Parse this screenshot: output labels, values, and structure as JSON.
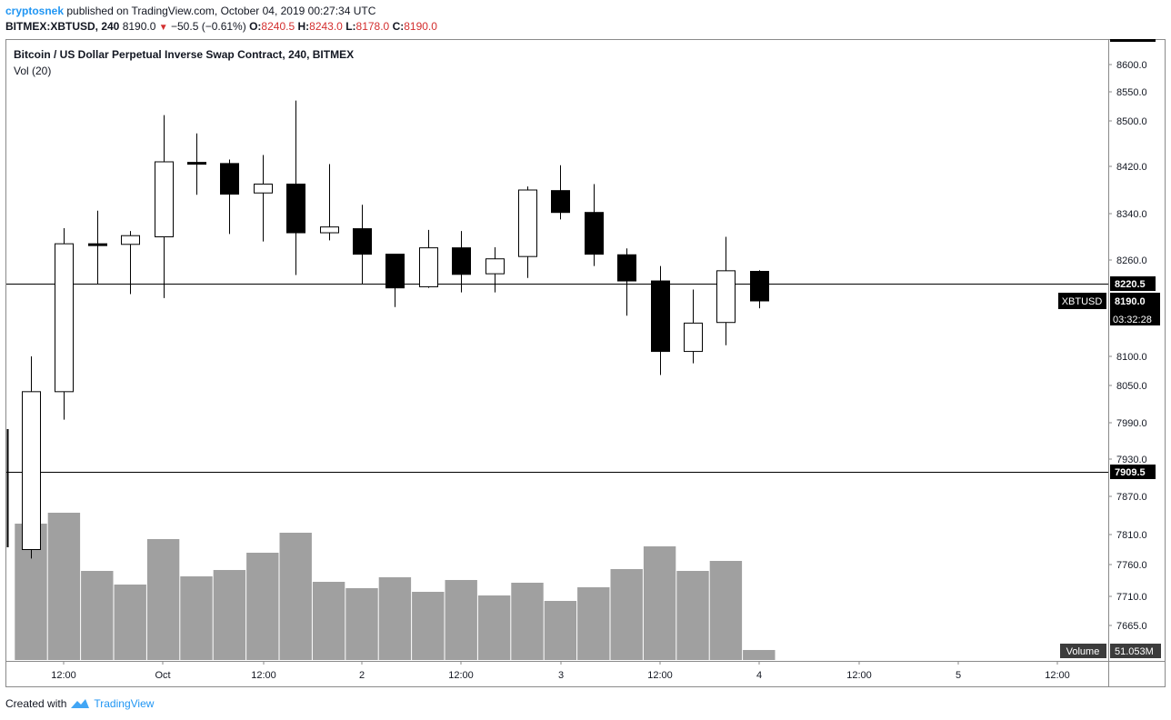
{
  "header": {
    "author": "cryptosnek",
    "published_text": "published on TradingView.com, October 04, 2019 00:27:34 UTC",
    "symbol_line": "BITMEX:XBTUSD, 240",
    "last": "8190.0",
    "change": "−50.5 (−0.61%)",
    "o_label": "O:",
    "o_val": "8240.5",
    "h_label": "H:",
    "h_val": "8243.0",
    "l_label": "L:",
    "l_val": "8178.0",
    "c_label": "C:",
    "c_val": "8190.0",
    "down_icon": "triangle-down-icon"
  },
  "legend": {
    "title": "Bitcoin / US Dollar Perpetual Inverse Swap Contract, 240, BITMEX",
    "volume_indicator": "Vol (20)"
  },
  "footer": {
    "created_with": "Created with",
    "brand": "TradingView",
    "logo_icon": "tradingview-logo-icon"
  },
  "colors": {
    "bull_fill": "#ffffff",
    "bear_fill": "#000000",
    "volume_bar": "#a0a0a0",
    "label_bg": "#000000",
    "brand": "#2196f3",
    "down": "#d32f2f"
  },
  "chart_data": {
    "type": "candlestick",
    "y_axis_ticks": [
      "8600.0",
      "8550.0",
      "8500.0",
      "8420.0",
      "8340.0",
      "8260.0",
      "8100.0",
      "8050.0",
      "7990.0",
      "7930.0",
      "7870.0",
      "7810.0",
      "7760.0",
      "7710.0",
      "7665.0"
    ],
    "x_axis_ticks": [
      "12:00",
      "Oct",
      "12:00",
      "2",
      "12:00",
      "3",
      "12:00",
      "4",
      "12:00",
      "5",
      "12:00"
    ],
    "horizontal_lines": [
      {
        "price": 8220.5,
        "label": "8220.5"
      },
      {
        "price": 7909.5,
        "label": "7909.5"
      }
    ],
    "price_label": {
      "name": "XBTUSD",
      "value": "8190.0",
      "countdown": "03:32:28"
    },
    "volume_label": {
      "name": "Volume",
      "value": "51.053M"
    },
    "candles": [
      {
        "o": 7785,
        "h": 8100,
        "l": 7770,
        "c": 8040,
        "v": 150
      },
      {
        "o": 8040,
        "h": 8315,
        "l": 7995,
        "c": 8288,
        "v": 162
      },
      {
        "o": 8288,
        "h": 8345,
        "l": 8220,
        "c": 8286,
        "v": 98
      },
      {
        "o": 8287,
        "h": 8310,
        "l": 8202,
        "c": 8302,
        "v": 83
      },
      {
        "o": 8300,
        "h": 8510,
        "l": 8195,
        "c": 8428,
        "v": 133
      },
      {
        "o": 8427,
        "h": 8478,
        "l": 8372,
        "c": 8424,
        "v": 92
      },
      {
        "o": 8425,
        "h": 8432,
        "l": 8305,
        "c": 8373,
        "v": 99
      },
      {
        "o": 8375,
        "h": 8440,
        "l": 8292,
        "c": 8390,
        "v": 118
      },
      {
        "o": 8390,
        "h": 8535,
        "l": 8235,
        "c": 8307,
        "v": 140
      },
      {
        "o": 8307,
        "h": 8424,
        "l": 8294,
        "c": 8317,
        "v": 86
      },
      {
        "o": 8314,
        "h": 8355,
        "l": 8220,
        "c": 8270,
        "v": 79
      },
      {
        "o": 8270,
        "h": 8270,
        "l": 8180,
        "c": 8213,
        "v": 91
      },
      {
        "o": 8215,
        "h": 8312,
        "l": 8213,
        "c": 8281,
        "v": 75
      },
      {
        "o": 8281,
        "h": 8310,
        "l": 8205,
        "c": 8236,
        "v": 88
      },
      {
        "o": 8237,
        "h": 8282,
        "l": 8205,
        "c": 8262,
        "v": 71
      },
      {
        "o": 8266,
        "h": 8386,
        "l": 8230,
        "c": 8380,
        "v": 85
      },
      {
        "o": 8379,
        "h": 8422,
        "l": 8330,
        "c": 8342,
        "v": 65
      },
      {
        "o": 8342,
        "h": 8390,
        "l": 8250,
        "c": 8270,
        "v": 80
      },
      {
        "o": 8269,
        "h": 8280,
        "l": 8166,
        "c": 8225,
        "v": 100
      },
      {
        "o": 8225,
        "h": 8250,
        "l": 8068,
        "c": 8108,
        "v": 125
      },
      {
        "o": 8108,
        "h": 8210,
        "l": 8088,
        "c": 8154,
        "v": 98
      },
      {
        "o": 8155,
        "h": 8300,
        "l": 8118,
        "c": 8242,
        "v": 109
      },
      {
        "o": 8241,
        "h": 8243,
        "l": 8178,
        "c": 8190,
        "v": 11
      }
    ]
  }
}
